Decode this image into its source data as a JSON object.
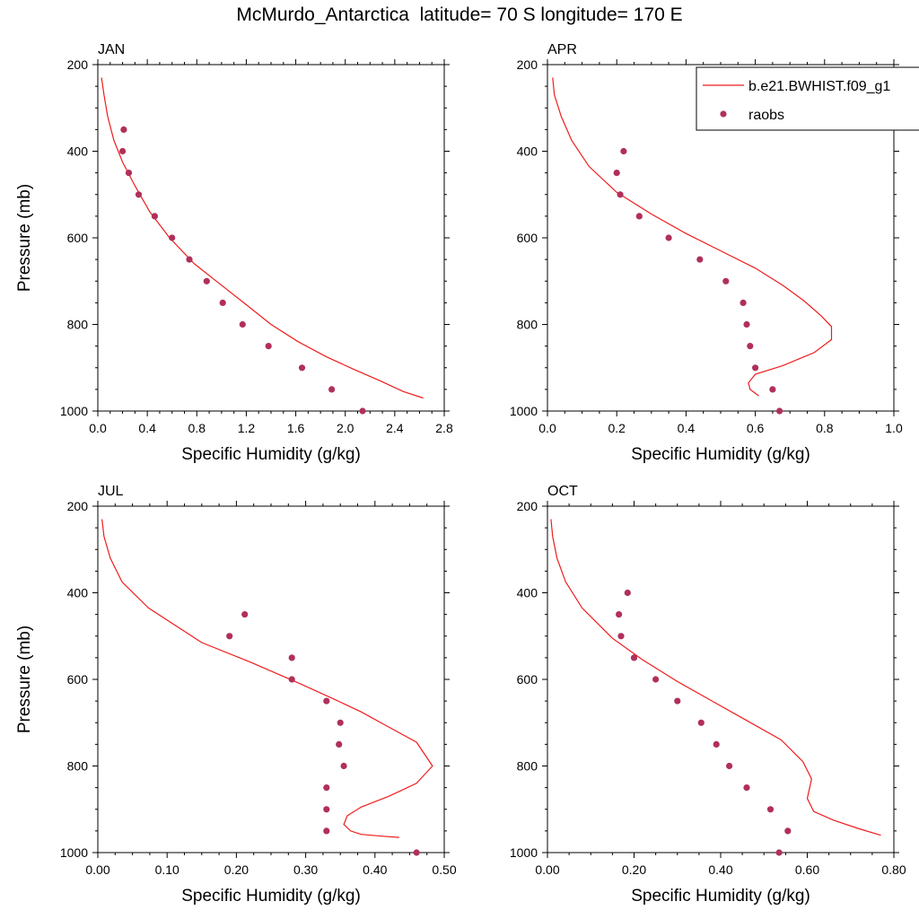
{
  "page": {
    "title": "McMurdo_Antarctica  latitude= 70 S longitude= 170 E"
  },
  "legend": {
    "model_label": "b.e21.BWHIST.f09_g1",
    "obs_label": "raobs",
    "model_color": "#ee1c1c",
    "obs_color": "#b0305a"
  },
  "chart_data": [
    {
      "type": "line",
      "panel": "JAN",
      "title": "JAN",
      "xlabel": "Specific Humidity (g/kg)",
      "ylabel": "Pressure (mb)",
      "xlim": [
        0,
        2.8
      ],
      "ylim": [
        1000,
        200
      ],
      "xticks": [
        0,
        0.4,
        0.8,
        1.2,
        1.6,
        2.0,
        2.4,
        2.8
      ],
      "xtick_labels": [
        "0.0",
        "0.4",
        "0.8",
        "1.2",
        "1.6",
        "2.0",
        "2.4",
        "2.8"
      ],
      "yticks": [
        200,
        400,
        600,
        800,
        1000
      ],
      "ytick_labels": [
        "200",
        "400",
        "600",
        "800",
        "1000"
      ],
      "series": [
        {
          "name": "b.e21.BWHIST.f09_g1",
          "kind": "line",
          "x": [
            0.03,
            0.05,
            0.08,
            0.13,
            0.2,
            0.3,
            0.42,
            0.58,
            0.78,
            0.98,
            1.18,
            1.4,
            1.62,
            1.85,
            2.08,
            2.28,
            2.47,
            2.63
          ],
          "y": [
            230,
            270,
            320,
            375,
            425,
            480,
            540,
            600,
            660,
            705,
            750,
            800,
            840,
            875,
            905,
            930,
            955,
            970
          ]
        },
        {
          "name": "raobs",
          "kind": "scatter",
          "x": [
            0.21,
            0.2,
            0.25,
            0.33,
            0.46,
            0.6,
            0.74,
            0.88,
            1.01,
            1.17,
            1.38,
            1.65,
            1.89,
            2.14
          ],
          "y": [
            350,
            400,
            450,
            500,
            550,
            600,
            650,
            700,
            750,
            800,
            850,
            900,
            950,
            1000
          ]
        }
      ]
    },
    {
      "type": "line",
      "panel": "APR",
      "title": "APR",
      "xlabel": "Specific Humidity (g/kg)",
      "ylabel": "",
      "xlim": [
        0,
        1.0
      ],
      "ylim": [
        1000,
        200
      ],
      "xticks": [
        0,
        0.2,
        0.4,
        0.6,
        0.8,
        1.0
      ],
      "xtick_labels": [
        "0.0",
        "0.2",
        "0.4",
        "0.6",
        "0.8",
        "1.0"
      ],
      "yticks": [
        200,
        400,
        600,
        800,
        1000
      ],
      "ytick_labels": [
        "200",
        "400",
        "600",
        "800",
        "1000"
      ],
      "series": [
        {
          "name": "b.e21.BWHIST.f09_g1",
          "kind": "line",
          "x": [
            0.015,
            0.02,
            0.04,
            0.07,
            0.12,
            0.2,
            0.3,
            0.4,
            0.5,
            0.6,
            0.68,
            0.74,
            0.79,
            0.82,
            0.82,
            0.77,
            0.68,
            0.6,
            0.58,
            0.585,
            0.61
          ],
          "y": [
            230,
            270,
            320,
            375,
            435,
            495,
            545,
            590,
            630,
            670,
            710,
            745,
            780,
            805,
            835,
            865,
            895,
            915,
            935,
            950,
            965
          ]
        },
        {
          "name": "raobs",
          "kind": "scatter",
          "x": [
            0.22,
            0.2,
            0.21,
            0.265,
            0.35,
            0.44,
            0.515,
            0.565,
            0.575,
            0.585,
            0.6,
            0.65,
            0.67
          ],
          "y": [
            400,
            450,
            500,
            550,
            600,
            650,
            700,
            750,
            800,
            850,
            900,
            950,
            1000
          ]
        }
      ]
    },
    {
      "type": "line",
      "panel": "JUL",
      "title": "JUL",
      "xlabel": "Specific Humidity (g/kg)",
      "ylabel": "Pressure (mb)",
      "xlim": [
        0,
        0.5
      ],
      "ylim": [
        1000,
        200
      ],
      "xticks": [
        0,
        0.1,
        0.2,
        0.3,
        0.4,
        0.5
      ],
      "xtick_labels": [
        "0.00",
        "0.10",
        "0.20",
        "0.30",
        "0.40",
        "0.50"
      ],
      "yticks": [
        200,
        400,
        600,
        800,
        1000
      ],
      "ytick_labels": [
        "200",
        "400",
        "600",
        "800",
        "1000"
      ],
      "series": [
        {
          "name": "b.e21.BWHIST.f09_g1",
          "kind": "line",
          "x": [
            0.006,
            0.009,
            0.018,
            0.035,
            0.073,
            0.15,
            0.22,
            0.285,
            0.34,
            0.38,
            0.42,
            0.46,
            0.483,
            0.46,
            0.42,
            0.38,
            0.36,
            0.355,
            0.365,
            0.38,
            0.41,
            0.435
          ],
          "y": [
            230,
            270,
            320,
            375,
            435,
            515,
            560,
            605,
            645,
            675,
            710,
            745,
            800,
            840,
            870,
            895,
            915,
            935,
            950,
            958,
            962,
            965
          ]
        },
        {
          "name": "raobs",
          "kind": "scatter",
          "x": [
            0.212,
            0.19,
            0.28,
            0.28,
            0.33,
            0.35,
            0.348,
            0.355,
            0.33,
            0.33,
            0.33,
            0.46
          ],
          "y": [
            450,
            500,
            550,
            600,
            650,
            700,
            750,
            800,
            850,
            900,
            950,
            1000
          ]
        }
      ]
    },
    {
      "type": "line",
      "panel": "OCT",
      "title": "OCT",
      "xlabel": "Specific Humidity (g/kg)",
      "ylabel": "",
      "xlim": [
        0,
        0.8
      ],
      "ylim": [
        1000,
        200
      ],
      "xticks": [
        0,
        0.2,
        0.4,
        0.6,
        0.8
      ],
      "xtick_labels": [
        "0.00",
        "0.20",
        "0.40",
        "0.60",
        "0.80"
      ],
      "yticks": [
        200,
        400,
        600,
        800,
        1000
      ],
      "ytick_labels": [
        "200",
        "400",
        "600",
        "800",
        "1000"
      ],
      "series": [
        {
          "name": "b.e21.BWHIST.f09_g1",
          "kind": "line",
          "x": [
            0.008,
            0.012,
            0.022,
            0.042,
            0.08,
            0.15,
            0.22,
            0.3,
            0.38,
            0.46,
            0.54,
            0.59,
            0.61,
            0.6,
            0.615,
            0.66,
            0.72,
            0.77
          ],
          "y": [
            230,
            270,
            320,
            375,
            435,
            505,
            555,
            605,
            650,
            695,
            740,
            790,
            830,
            875,
            905,
            925,
            945,
            960
          ]
        },
        {
          "name": "raobs",
          "kind": "scatter",
          "x": [
            0.185,
            0.165,
            0.17,
            0.2,
            0.25,
            0.3,
            0.355,
            0.39,
            0.42,
            0.46,
            0.515,
            0.555,
            0.535
          ],
          "y": [
            400,
            450,
            500,
            550,
            600,
            650,
            700,
            750,
            800,
            850,
            900,
            950,
            1000
          ]
        }
      ]
    }
  ]
}
